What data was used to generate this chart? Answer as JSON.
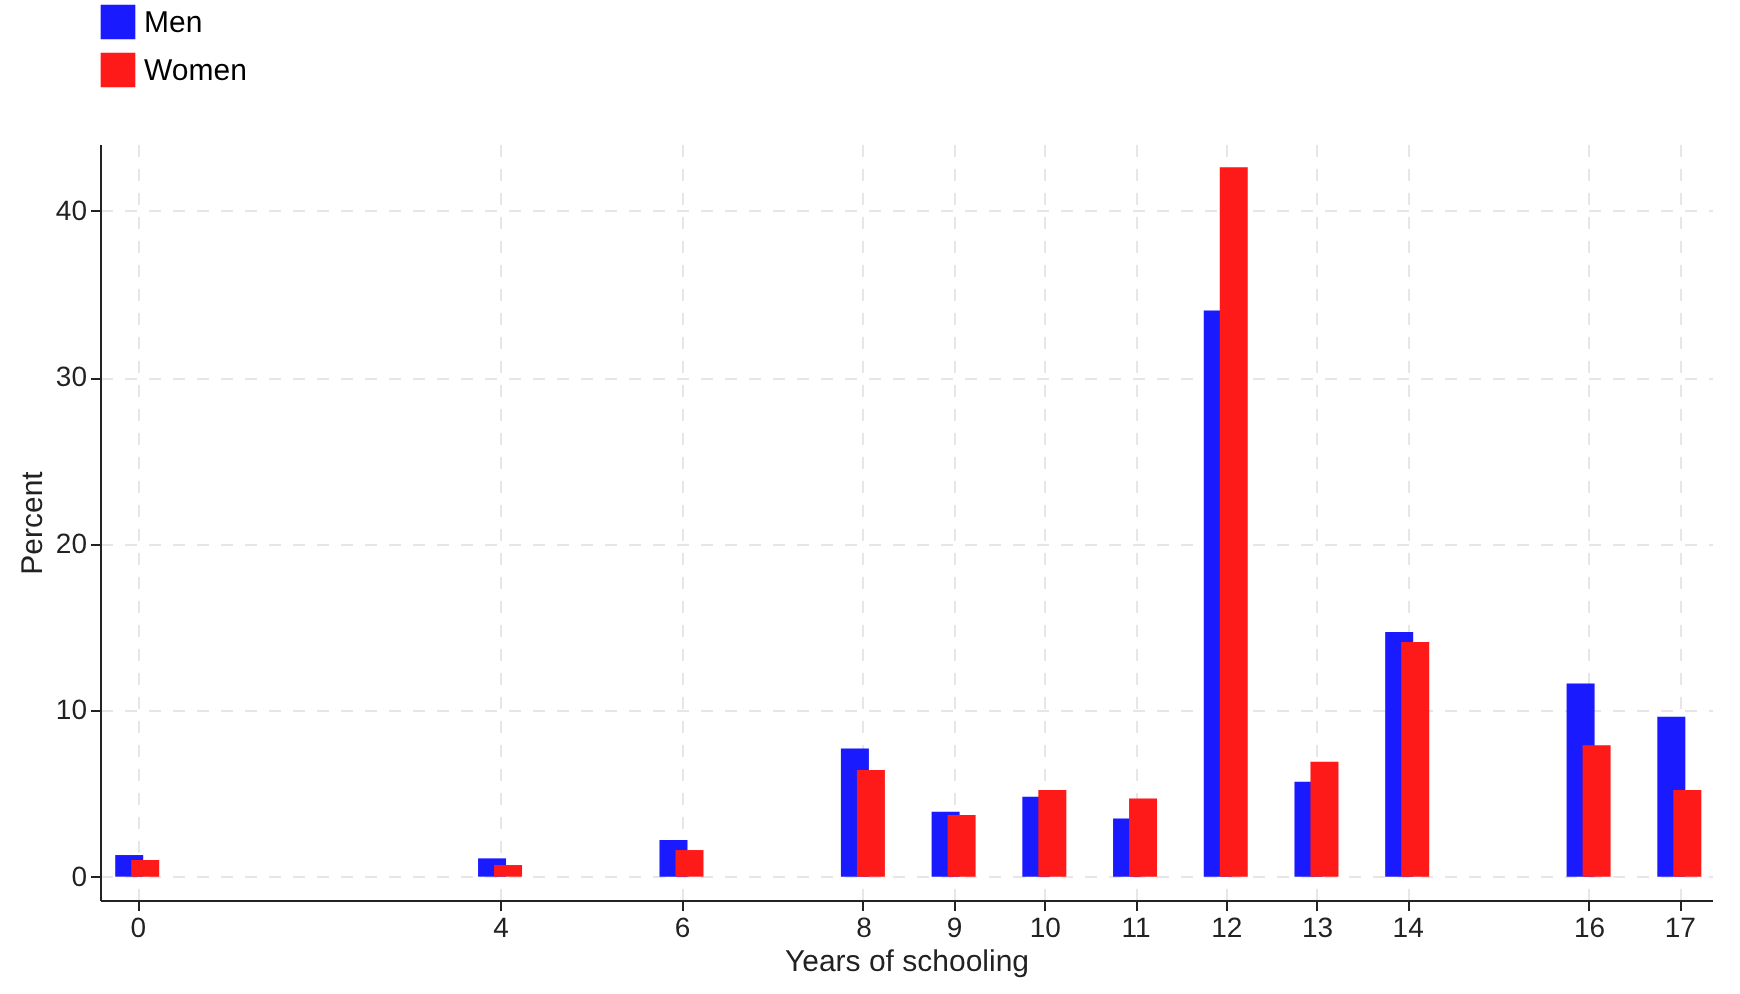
{
  "chart_data": {
    "type": "bar",
    "xlabel": "Years of schooling",
    "ylabel": "Percent",
    "x": [
      0,
      4,
      6,
      8,
      9,
      10,
      11,
      12,
      13,
      14,
      16,
      17
    ],
    "series": [
      {
        "name": "Men",
        "color": "#1a1aff",
        "values": [
          1.3,
          1.1,
          2.2,
          7.7,
          3.9,
          4.8,
          3.5,
          34.0,
          5.7,
          14.7,
          11.6,
          9.6
        ]
      },
      {
        "name": "Women",
        "color": "#ff1a1a",
        "values": [
          1.0,
          0.7,
          1.6,
          6.4,
          3.7,
          5.2,
          4.7,
          42.6,
          6.9,
          14.1,
          7.9,
          5.2
        ]
      }
    ],
    "xlim": [
      -0.3,
      17.25
    ],
    "xticks": [
      0,
      4,
      6,
      8,
      9,
      10,
      11,
      12,
      13,
      14,
      16,
      17
    ],
    "ylim": [
      -1.4,
      44
    ],
    "yticks": [
      0,
      10,
      20,
      30,
      40
    ],
    "grid": true,
    "legend": "top left"
  }
}
